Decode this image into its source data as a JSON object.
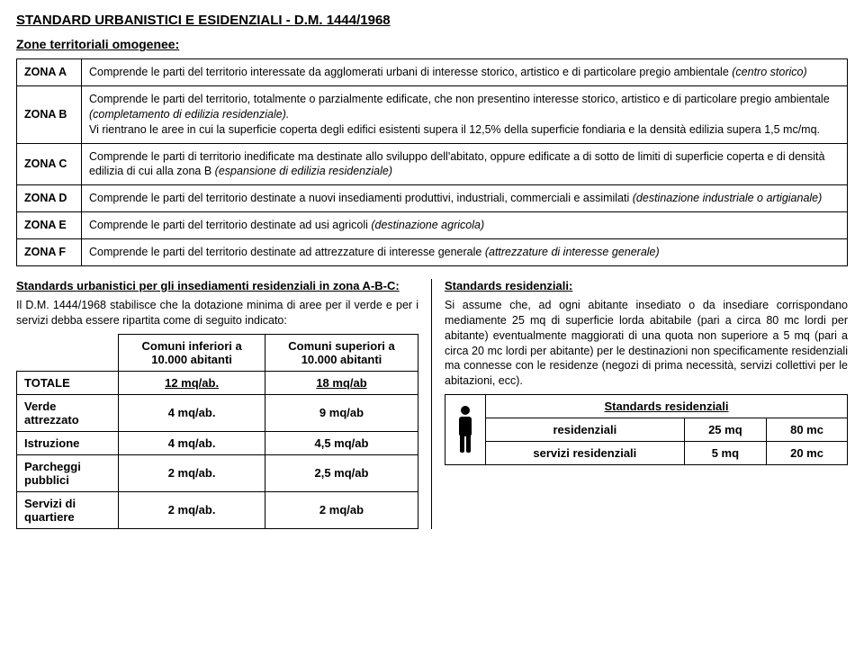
{
  "title": "STANDARD URBANISTICI E ESIDENZIALI - D.M. 1444/1968",
  "subtitle": "Zone territoriali omogenee:",
  "zones": [
    {
      "label": "ZONA A",
      "desc": "Comprende le parti del territorio interessate da agglomerati urbani di interesse storico, artistico e di particolare pregio ambientale ",
      "desc_italic": "(centro storico)"
    },
    {
      "label": "ZONA B",
      "desc": "Comprende le parti del territorio, totalmente o parzialmente edificate, che non presentino interesse storico, artistico e di particolare pregio ambientale ",
      "desc_italic": "(completamento di edilizia residenziale).",
      "desc2": " Vi rientrano le aree in cui la superficie coperta degli edifici esistenti supera il 12,5% della superficie fondiaria e la densità edilizia supera 1,5 mc/mq."
    },
    {
      "label": "ZONA C",
      "desc": "Comprende le parti di territorio inedificate ma destinate allo sviluppo dell'abitato, oppure edificate a di sotto de limiti di superficie coperta e di densità edilizia di cui alla zona B ",
      "desc_italic": "(espansione di edilizia residenziale)"
    },
    {
      "label": "ZONA D",
      "desc": "Comprende le parti del territorio destinate a nuovi insediamenti produttivi, industriali, commerciali e assimilati ",
      "desc_italic": "(destinazione industriale o artigianale)"
    },
    {
      "label": "ZONA E",
      "desc": "Comprende le parti del territorio destinate ad usi agricoli ",
      "desc_italic": "(destinazione agricola)"
    },
    {
      "label": "ZONA F",
      "desc": "Comprende le parti del territorio destinate ad attrezzature di interesse generale ",
      "desc_italic": "(attrezzature di interesse generale)"
    }
  ],
  "left": {
    "heading": "Standards urbanistici per gli insediamenti residenziali in zona A-B-C:",
    "para": "Il D.M. 1444/1968 stabilisce che la dotazione minima di aree per il verde e per i servizi debba essere ripartita come di seguito indicato:",
    "table": {
      "col1": "Comuni inferiori a 10.000 abitanti",
      "col2": "Comuni superiori a 10.000 abitanti",
      "rows": [
        {
          "label": "TOTALE",
          "v1": "12 mq/ab.",
          "v2": "18 mq/ab",
          "u": true
        },
        {
          "label": "Verde attrezzato",
          "v1": "4 mq/ab.",
          "v2": "9 mq/ab"
        },
        {
          "label": "Istruzione",
          "v1": "4 mq/ab.",
          "v2": "4,5 mq/ab"
        },
        {
          "label": "Parcheggi pubblici",
          "v1": "2 mq/ab.",
          "v2": "2,5 mq/ab"
        },
        {
          "label": "Servizi di quartiere",
          "v1": "2 mq/ab.",
          "v2": "2 mq/ab"
        }
      ]
    }
  },
  "right": {
    "heading": "Standards residenziali:",
    "para": "Si assume che, ad ogni abitante insediato o da insediare corrispondano mediamente 25 mq di superficie lorda abitabile (pari a circa 80 mc lordi per abitante) eventualmente maggiorati di una quota non superiore a 5 mq (pari a circa 20 mc lordi per abitante) per le destinazioni non specificamente residenziali ma connesse con le residenze ",
    "para_tail": "(negozi di prima necessità, servizi collettivi per le abitazioni, ecc).",
    "table": {
      "title": "Standards residenziali",
      "rows": [
        {
          "label": "residenziali",
          "v1": "25 mq",
          "v2": "80 mc"
        },
        {
          "label": "servizi residenziali",
          "v1": "5 mq",
          "v2": "20 mc"
        }
      ]
    }
  },
  "icon_color": "#000000"
}
